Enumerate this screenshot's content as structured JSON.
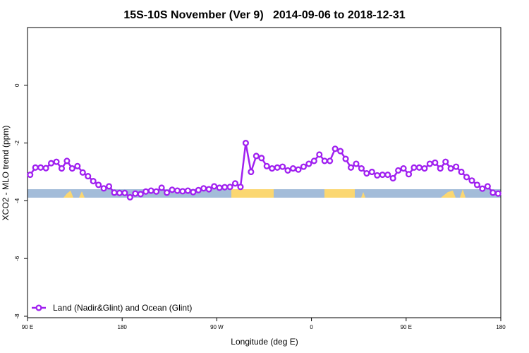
{
  "chart_data": {
    "type": "line",
    "title": "15S-10S November (Ver 9)   2014-09-06 to 2018-12-31",
    "xlabel": "Longitude (deg E)",
    "ylabel": "XCO2 - MLO trend (ppm)",
    "xlim": [
      90,
      540
    ],
    "ylim": [
      -8.05,
      2
    ],
    "xticks": [
      {
        "value": 90,
        "label": "90 E"
      },
      180,
      {
        "value": 270,
        "label": "90 W"
      },
      {
        "value": 360,
        "label": "0"
      },
      {
        "value": 450,
        "label": "90 E"
      },
      {
        "value": 540,
        "label": "180"
      }
    ],
    "yticks": [
      0,
      -2,
      -4,
      -6,
      -8
    ],
    "legend": "bottom-left",
    "x": [
      92.5,
      97.5,
      102.5,
      107.5,
      112.5,
      117.5,
      122.5,
      127.5,
      132.5,
      137.5,
      142.5,
      147.5,
      152.5,
      157.5,
      162.5,
      167.5,
      172.5,
      177.5,
      182.5,
      187.5,
      192.5,
      197.5,
      202.5,
      207.5,
      212.5,
      217.5,
      222.5,
      227.5,
      232.5,
      237.5,
      242.5,
      247.5,
      252.5,
      257.5,
      262.5,
      267.5,
      272.5,
      277.5,
      282.5,
      287.5,
      292.5,
      297.5,
      302.5,
      307.5,
      312.5,
      317.5,
      322.5,
      327.5,
      332.5,
      337.5,
      342.5,
      347.5,
      352.5,
      357.5,
      362.5,
      367.5,
      372.5,
      377.5,
      382.5,
      387.5,
      392.5,
      397.5,
      402.5,
      407.5,
      412.5,
      417.5,
      422.5,
      427.5,
      432.5,
      437.5,
      442.5,
      447.5,
      452.5,
      457.5,
      462.5,
      467.5,
      472.5,
      477.5,
      482.5,
      487.5,
      492.5,
      497.5,
      502.5,
      507.5,
      512.5,
      517.5,
      522.5,
      527.5,
      532.5,
      537.5
    ],
    "series": [
      {
        "name": "Land (Nadir&Glint) and Ocean (Glint)",
        "color": "#a020f0",
        "values": [
          -3.1,
          -2.85,
          -2.85,
          -2.87,
          -2.7,
          -2.65,
          -2.88,
          -2.62,
          -2.88,
          -2.8,
          -3.02,
          -3.15,
          -3.32,
          -3.45,
          -3.57,
          -3.5,
          -3.72,
          -3.73,
          -3.73,
          -3.88,
          -3.75,
          -3.77,
          -3.68,
          -3.65,
          -3.68,
          -3.55,
          -3.72,
          -3.62,
          -3.65,
          -3.67,
          -3.65,
          -3.7,
          -3.63,
          -3.57,
          -3.6,
          -3.5,
          -3.55,
          -3.53,
          -3.52,
          -3.4,
          -3.52,
          -2.0,
          -3.0,
          -2.45,
          -2.52,
          -2.8,
          -2.88,
          -2.85,
          -2.82,
          -2.95,
          -2.88,
          -2.92,
          -2.82,
          -2.72,
          -2.62,
          -2.4,
          -2.62,
          -2.62,
          -2.2,
          -2.28,
          -2.55,
          -2.85,
          -2.72,
          -2.88,
          -3.05,
          -3.0,
          -3.12,
          -3.1,
          -3.1,
          -3.22,
          -2.95,
          -2.88,
          -3.08,
          -2.85,
          -2.85,
          -2.88,
          -2.72,
          -2.68,
          -2.88,
          -2.65,
          -2.88,
          -2.82,
          -3.0,
          -3.18,
          -3.3,
          -3.45,
          -3.58,
          -3.5,
          -3.72,
          -3.75
        ]
      }
    ]
  }
}
